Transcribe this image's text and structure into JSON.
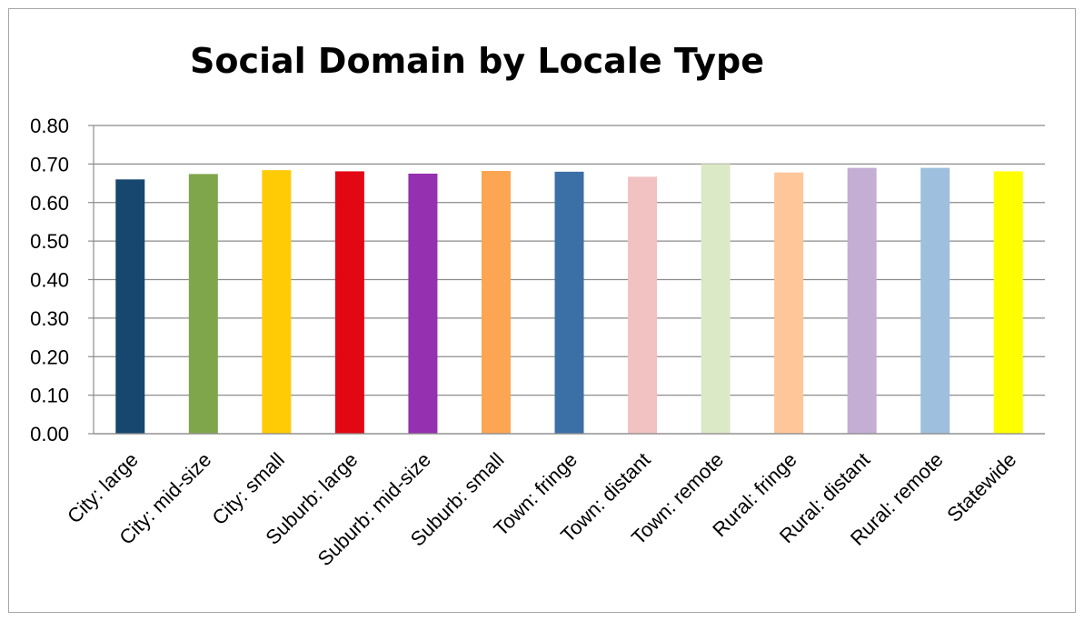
{
  "chart_data": {
    "type": "bar",
    "title": "Social Domain by Locale Type",
    "xlabel": "",
    "ylabel": "",
    "ylim": [
      0,
      0.8
    ],
    "yticks": [
      "0.00",
      "0.10",
      "0.20",
      "0.30",
      "0.40",
      "0.50",
      "0.60",
      "0.70",
      "0.80"
    ],
    "grid": true,
    "legend": "none",
    "categories": [
      "City: large",
      "City: mid-size",
      "City: small",
      "Suburb: large",
      "Suburb: mid-size",
      "Suburb: small",
      "Town: fringe",
      "Town: distant",
      "Town: remote",
      "Rural: fringe",
      "Rural: distant",
      "Rural: remote",
      "Statewide"
    ],
    "values": [
      0.66,
      0.674,
      0.684,
      0.681,
      0.675,
      0.682,
      0.68,
      0.667,
      0.7,
      0.678,
      0.69,
      0.69,
      0.681
    ],
    "colors": [
      "#17476f",
      "#7fa64b",
      "#ffcb05",
      "#e30613",
      "#9530b0",
      "#fca552",
      "#3b70a6",
      "#f2c2c2",
      "#dbe9c7",
      "#fec79a",
      "#c4aed4",
      "#9ebfdd",
      "#ffff00"
    ]
  }
}
